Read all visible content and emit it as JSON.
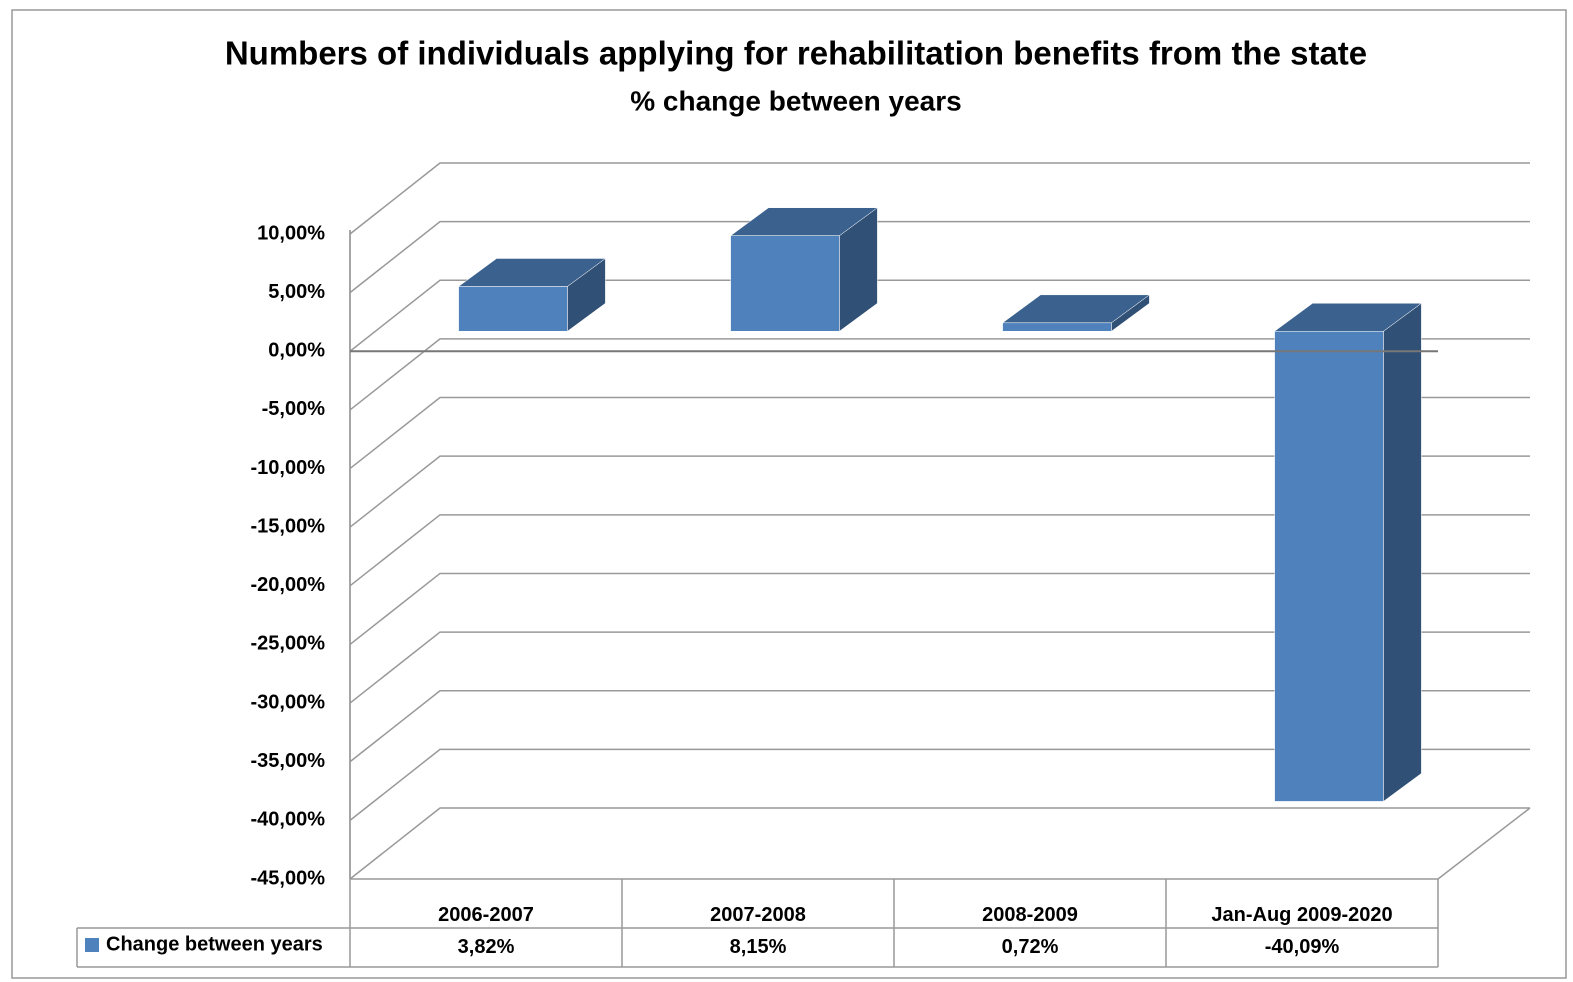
{
  "chart_data": {
    "type": "bar3d",
    "title": "Numbers of individuals applying  for rehabilitation  benefits from the state",
    "subtitle": "% change between years",
    "categories": [
      "2006-2007",
      "2007-2008",
      "2008-2009",
      "Jan-Aug 2009-2020"
    ],
    "series": [
      {
        "name": "Change between years",
        "color": "#4f81bd",
        "values": [
          3.82,
          8.15,
          0.72,
          -40.09
        ],
        "value_labels": [
          "3,82%",
          "8,15%",
          "0,72%",
          "-40,09%"
        ]
      }
    ],
    "ylim": [
      -45,
      10
    ],
    "yticks": [
      {
        "value": 10,
        "label": "10,00%"
      },
      {
        "value": 5,
        "label": "5,00%"
      },
      {
        "value": 0,
        "label": "0,00%"
      },
      {
        "value": -5,
        "label": "-5,00%"
      },
      {
        "value": -10,
        "label": "-10,00%"
      },
      {
        "value": -15,
        "label": "-15,00%"
      },
      {
        "value": -20,
        "label": "-20,00%"
      },
      {
        "value": -25,
        "label": "-25,00%"
      },
      {
        "value": -30,
        "label": "-30,00%"
      },
      {
        "value": -35,
        "label": "-35,00%"
      },
      {
        "value": -40,
        "label": "-40,00%"
      },
      {
        "value": -45,
        "label": "-45,00%"
      }
    ],
    "grid": true,
    "legend": "table"
  }
}
